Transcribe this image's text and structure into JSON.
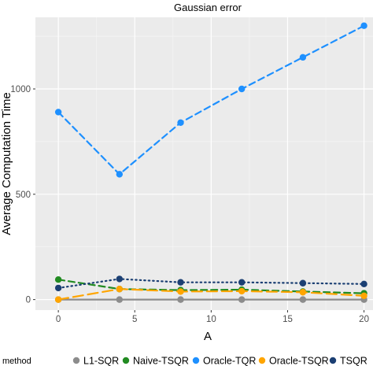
{
  "chart_data": {
    "type": "line",
    "title": "Gaussian error",
    "xlabel": "A",
    "ylabel": "Average Computation Time",
    "xlim": [
      -1.5,
      21
    ],
    "ylim": [
      -50,
      1340
    ],
    "x_ticks": [
      0,
      5,
      10,
      15,
      20
    ],
    "y_ticks": [
      0,
      500,
      1000
    ],
    "grid": true,
    "legend": {
      "title": "method",
      "position": "bottom"
    },
    "x": [
      0,
      4,
      8,
      12,
      16,
      20
    ],
    "series": [
      {
        "name": "L1-SQR",
        "color": "#8c8c8c",
        "linestyle": "solid",
        "values": [
          0,
          0,
          0,
          0,
          0,
          0
        ]
      },
      {
        "name": "Naive-TSQR",
        "color": "#228b22",
        "linestyle": "dashed",
        "values": [
          95,
          50,
          45,
          47,
          38,
          30
        ]
      },
      {
        "name": "Oracle-TQR",
        "color": "#1e90ff",
        "linestyle": "dashed",
        "values": [
          890,
          595,
          840,
          1000,
          1150,
          1300
        ]
      },
      {
        "name": "Oracle-TSQR",
        "color": "#ffa500",
        "linestyle": "longdash",
        "values": [
          0,
          50,
          38,
          40,
          35,
          18
        ]
      },
      {
        "name": "TSQR",
        "color": "#1b3f73",
        "linestyle": "dotted",
        "values": [
          55,
          98,
          82,
          82,
          78,
          74
        ]
      }
    ]
  }
}
